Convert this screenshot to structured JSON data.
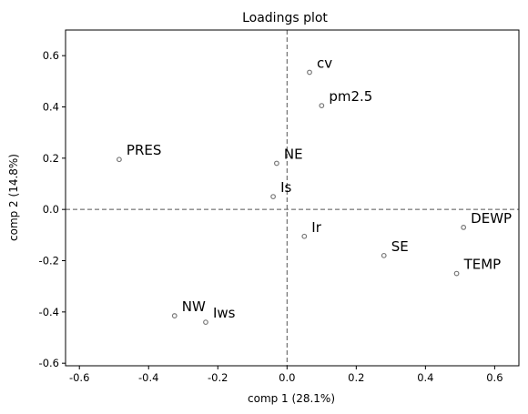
{
  "chart_data": {
    "type": "scatter",
    "title": "Loadings plot",
    "xlabel": "comp 1 (28.1%)",
    "ylabel": "comp 2 (14.8%)",
    "xlim": [
      -0.64,
      0.67
    ],
    "ylim": [
      -0.61,
      0.7
    ],
    "xticks": [
      -0.6,
      -0.4,
      -0.2,
      0.0,
      0.2,
      0.4,
      0.6
    ],
    "yticks": [
      -0.6,
      -0.4,
      -0.2,
      0.0,
      0.2,
      0.4,
      0.6
    ],
    "grid": false,
    "reference_lines": {
      "x": 0,
      "y": 0,
      "style": "dashed",
      "color": "#555555"
    },
    "marker": {
      "shape": "circle",
      "fill": "none",
      "stroke": "#777777"
    },
    "points": [
      {
        "label": "cv",
        "x": 0.065,
        "y": 0.535
      },
      {
        "label": "pm2.5",
        "x": 0.1,
        "y": 0.405
      },
      {
        "label": "PRES",
        "x": -0.485,
        "y": 0.195
      },
      {
        "label": "NE",
        "x": -0.03,
        "y": 0.18
      },
      {
        "label": "Is",
        "x": -0.04,
        "y": 0.05
      },
      {
        "label": "DEWP",
        "x": 0.51,
        "y": -0.07
      },
      {
        "label": "Ir",
        "x": 0.05,
        "y": -0.105
      },
      {
        "label": "SE",
        "x": 0.28,
        "y": -0.18
      },
      {
        "label": "TEMP",
        "x": 0.49,
        "y": -0.25
      },
      {
        "label": "NW",
        "x": -0.325,
        "y": -0.415
      },
      {
        "label": "Iws",
        "x": -0.235,
        "y": -0.44
      }
    ]
  }
}
